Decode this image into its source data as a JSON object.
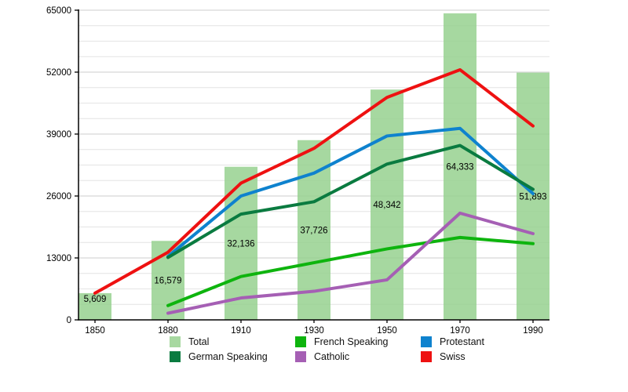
{
  "chart_data": {
    "type": "bar+line",
    "title": "",
    "categories": [
      "1850",
      "1880",
      "1910",
      "1930",
      "1950",
      "1970",
      "1990"
    ],
    "bar_series": {
      "name": "Total",
      "values": [
        5609,
        16579,
        32136,
        37726,
        48342,
        64333,
        51893
      ],
      "labels": [
        "5,609",
        "16,579",
        "32,136",
        "37,726",
        "48,342",
        "64,333",
        "51,893"
      ],
      "color": "#97D18F",
      "legend_color": "#A7D8A0"
    },
    "line_series": [
      {
        "name": "Protestant",
        "color": "#0E82CE",
        "values": [
          null,
          13300,
          26000,
          30800,
          38600,
          40200,
          26500
        ]
      },
      {
        "name": "German Speaking",
        "color": "#0A7B40",
        "values": [
          null,
          13100,
          22200,
          24800,
          32700,
          36600,
          27400
        ]
      },
      {
        "name": "French Speaking",
        "color": "#0EB40E",
        "values": [
          null,
          3000,
          9100,
          12000,
          14900,
          17300,
          16000
        ]
      },
      {
        "name": "Catholic",
        "color": "#A55FB4",
        "values": [
          null,
          1400,
          4600,
          6000,
          8400,
          22400,
          18100
        ]
      },
      {
        "name": "Swiss",
        "color": "#EE1111",
        "values": [
          5609,
          14200,
          28700,
          36000,
          46700,
          52500,
          40700
        ]
      }
    ],
    "y_axis": {
      "min": 0,
      "max": 65000,
      "tick_values": [
        0,
        13000,
        26000,
        39000,
        52000,
        65000
      ],
      "tick_labels": [
        "0",
        "13000",
        "26000",
        "39000",
        "52000",
        "65000"
      ],
      "minor_step": 3250,
      "grid": true
    },
    "x_axis": {
      "tick_labels": [
        "1850",
        "1880",
        "1910",
        "1930",
        "1950",
        "1970",
        "1990"
      ]
    },
    "legend": {
      "position": "bottom",
      "rows": [
        [
          {
            "label": "Total",
            "color": "#A7D8A0"
          },
          {
            "label": "French Speaking",
            "color": "#0EB40E"
          },
          {
            "label": "Protestant",
            "color": "#0E82CE"
          }
        ],
        [
          {
            "label": "German Speaking",
            "color": "#0A7B40"
          },
          {
            "label": "Catholic",
            "color": "#A55FB4"
          },
          {
            "label": "Swiss",
            "color": "#EE1111"
          }
        ]
      ]
    },
    "colors": {
      "grid_major": "#cccccc",
      "grid_minor": "#e4e4e4",
      "axis": "#000000",
      "tick_text": "#000000",
      "bar_label_text": "#000000"
    }
  }
}
